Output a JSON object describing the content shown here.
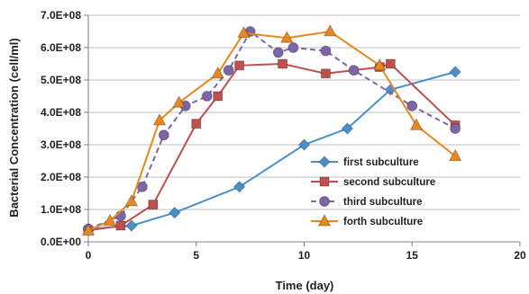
{
  "chart_data": {
    "type": "line",
    "title": "",
    "xlabel": "Time (day)",
    "ylabel": "Bacterial Concentration (cell/ml)",
    "xlim": [
      0,
      20
    ],
    "ylim": [
      0,
      700000000
    ],
    "x_ticks": [
      0,
      5,
      10,
      15,
      20
    ],
    "x_tick_labels": [
      "0",
      "5",
      "10",
      "15",
      "20"
    ],
    "y_ticks": [
      0,
      100000000,
      200000000,
      300000000,
      400000000,
      500000000,
      600000000,
      700000000
    ],
    "y_tick_labels": [
      "0.0E+00",
      "1.0E+08",
      "2.0E+08",
      "3.0E+08",
      "4.0E+08",
      "5.0E+08",
      "6.0E+08",
      "7.0E+08"
    ],
    "grid": "horizontal",
    "legend_position": "bottom-right",
    "series": [
      {
        "name": "first subculture",
        "color": "#4A90C8",
        "marker": "diamond",
        "dashed": false,
        "x": [
          0,
          2,
          4,
          7,
          10,
          12,
          14,
          17
        ],
        "y": [
          40000000,
          50000000,
          90000000,
          170000000,
          300000000,
          350000000,
          470000000,
          525000000
        ]
      },
      {
        "name": "second subculture",
        "color": "#C0504D",
        "marker": "square",
        "dashed": false,
        "x": [
          0,
          1.5,
          3,
          5,
          6,
          7,
          9,
          11,
          13.5,
          14,
          17
        ],
        "y": [
          35000000,
          50000000,
          115000000,
          365000000,
          450000000,
          545000000,
          550000000,
          520000000,
          540000000,
          550000000,
          360000000
        ]
      },
      {
        "name": "third subculture",
        "color": "#7E65A8",
        "marker": "circle",
        "dashed": true,
        "x": [
          0,
          1.5,
          2.5,
          3.5,
          4.5,
          5.5,
          6.5,
          7.5,
          8.8,
          9.5,
          11,
          12.3,
          15,
          17
        ],
        "y": [
          40000000,
          80000000,
          170000000,
          330000000,
          420000000,
          450000000,
          530000000,
          650000000,
          585000000,
          600000000,
          590000000,
          530000000,
          420000000,
          350000000
        ]
      },
      {
        "name": "forth subculture",
        "color": "#E9881E",
        "marker": "triangle",
        "dashed": false,
        "x": [
          0,
          1,
          2,
          3.3,
          4.2,
          6,
          7.2,
          9.2,
          11.2,
          13.5,
          15.2,
          17
        ],
        "y": [
          35000000,
          65000000,
          125000000,
          375000000,
          430000000,
          520000000,
          645000000,
          630000000,
          650000000,
          545000000,
          360000000,
          265000000
        ]
      }
    ]
  }
}
